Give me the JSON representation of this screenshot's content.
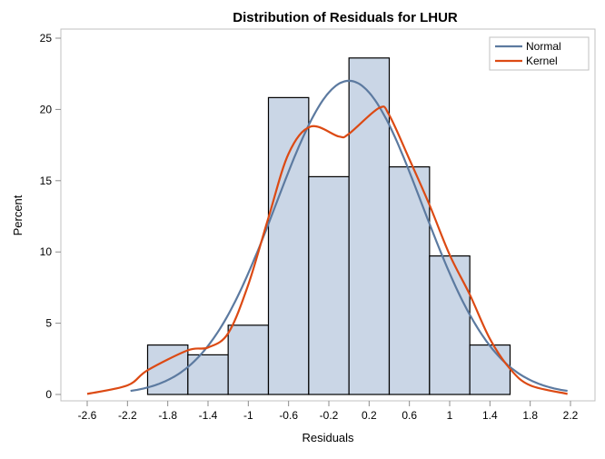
{
  "chart_data": {
    "type": "bar",
    "title": "Distribution of Residuals for LHUR",
    "xlabel": "Residuals",
    "ylabel": "Percent",
    "xlim": [
      -2.75,
      2.35
    ],
    "ylim": [
      0,
      25
    ],
    "x_ticks": [
      -2.6,
      -2.2,
      -1.8,
      -1.4,
      -1,
      -0.6,
      -0.2,
      0.2,
      0.6,
      1,
      1.4,
      1.8,
      2.2
    ],
    "x_tick_labels": [
      "-2.6",
      "-2.2",
      "-1.8",
      "-1.4",
      "-1",
      "-0.6",
      "-0.2",
      "0.2",
      "0.6",
      "1",
      "1.4",
      "1.8",
      "2.2"
    ],
    "y_ticks": [
      0,
      5,
      10,
      15,
      20,
      25
    ],
    "y_tick_labels": [
      "0",
      "5",
      "10",
      "15",
      "20",
      "25"
    ],
    "grid": false,
    "histogram": {
      "bin_edges": [
        -2.0,
        -1.6,
        -1.2,
        -0.8,
        -0.4,
        0.0,
        0.4,
        0.8,
        1.2,
        1.6
      ],
      "values": [
        3.47,
        2.78,
        4.86,
        20.83,
        15.28,
        23.61,
        15.97,
        9.72,
        3.47
      ],
      "fill": "#cad6e6",
      "stroke": "#000000"
    },
    "series": [
      {
        "name": "Normal",
        "type": "line",
        "color": "#5c7aa0",
        "mean": 0.0,
        "std": 0.725,
        "x_range": [
          -2.17,
          2.17
        ]
      },
      {
        "name": "Kernel",
        "type": "line",
        "color": "#dc4a14",
        "x": [
          -2.6,
          -2.2,
          -2.0,
          -1.6,
          -1.4,
          -1.2,
          -1.0,
          -0.8,
          -0.6,
          -0.38,
          -0.1,
          0.0,
          0.3,
          0.4,
          0.6,
          0.8,
          1.0,
          1.2,
          1.4,
          1.6,
          1.8,
          2.17
        ],
        "y": [
          0.04,
          0.64,
          1.7,
          3.1,
          3.3,
          4.3,
          7.7,
          12.4,
          16.9,
          18.8,
          18.1,
          18.3,
          20.1,
          19.6,
          16.5,
          13.3,
          9.8,
          7.0,
          3.9,
          1.8,
          0.64,
          0.04
        ]
      }
    ],
    "legend": {
      "placement": "top-right",
      "entries": [
        "Normal",
        "Kernel"
      ]
    }
  }
}
